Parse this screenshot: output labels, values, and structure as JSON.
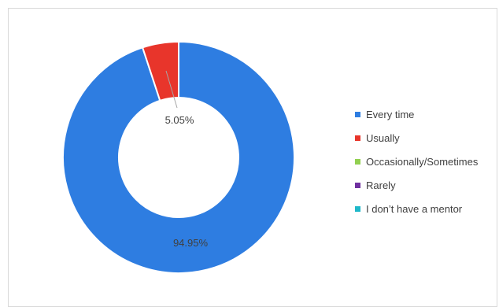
{
  "chart_data": {
    "type": "pie",
    "variant": "donut",
    "categories": [
      "Every time",
      "Usually",
      "Occasionally/Sometimes",
      "Rarely",
      "I don’t have a mentor"
    ],
    "values": [
      94.95,
      5.05,
      0,
      0,
      0
    ],
    "data_labels": [
      "94.95%",
      "5.05%",
      "",
      "",
      ""
    ],
    "colors": [
      "#2E7DE1",
      "#E8352B",
      "#92D050",
      "#7030A0",
      "#1FB8C9"
    ],
    "legend_position": "right",
    "title": ""
  }
}
